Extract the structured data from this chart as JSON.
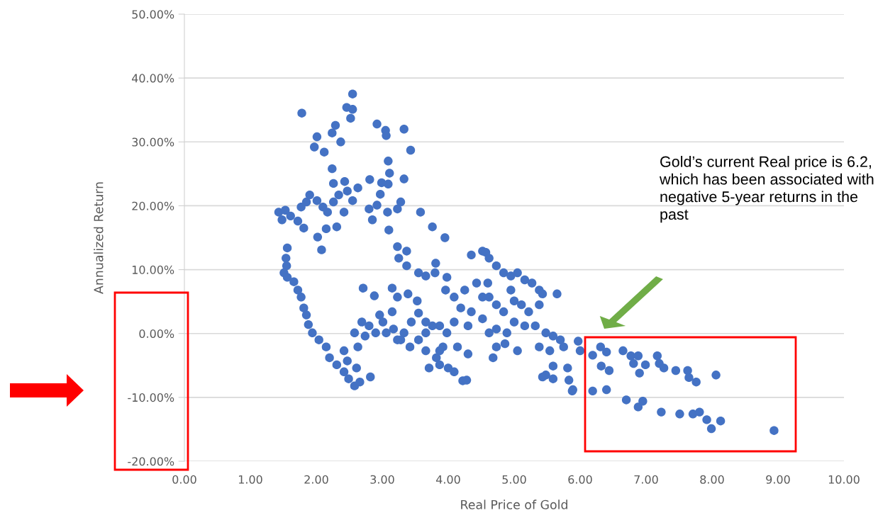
{
  "chart_data": {
    "type": "scatter",
    "xlabel": "Real Price of Gold",
    "ylabel": "Annualized Return",
    "xlim": [
      0,
      10
    ],
    "ylim": [
      -20,
      50
    ],
    "xticks": [
      {
        "value": 0,
        "label": "0.00"
      },
      {
        "value": 1,
        "label": "1.00"
      },
      {
        "value": 2,
        "label": "2.00"
      },
      {
        "value": 3,
        "label": "3.00"
      },
      {
        "value": 4,
        "label": "4.00"
      },
      {
        "value": 5,
        "label": "5.00"
      },
      {
        "value": 6,
        "label": "6.00"
      },
      {
        "value": 7,
        "label": "7.00"
      },
      {
        "value": 8,
        "label": "8.00"
      },
      {
        "value": 9,
        "label": "9.00"
      },
      {
        "value": 10,
        "label": "10.00"
      }
    ],
    "yticks": [
      {
        "value": -20,
        "label": "-20.00%"
      },
      {
        "value": -10,
        "label": "-10.00%"
      },
      {
        "value": 0,
        "label": "0.00%"
      },
      {
        "value": 10,
        "label": "10.00%"
      },
      {
        "value": 20,
        "label": "20.00%"
      },
      {
        "value": 30,
        "label": "30.00%"
      },
      {
        "value": 40,
        "label": "40.00%"
      },
      {
        "value": 50,
        "label": "50.00%"
      }
    ],
    "grid": "y",
    "marker": "circle",
    "annotations": [
      "Gold’s current Real price is 6.2, which has been associated with negative 5-year returns in the past"
    ],
    "series": [
      {
        "color": "#4472c4",
        "x": [
          1.78,
          1.97,
          2.01,
          2.29,
          2.24,
          2.37,
          2.12,
          2.55,
          2.46,
          2.55,
          2.52,
          2.92,
          3.05,
          3.06,
          3.33,
          3.43,
          3.09,
          3.11,
          3.09,
          3.33,
          2.24,
          2.26,
          2.43,
          2.81,
          2.99,
          2.97,
          1.43,
          1.48,
          1.53,
          1.61,
          1.72,
          1.81,
          1.77,
          1.85,
          1.9,
          2.01,
          2.1,
          2.17,
          2.26,
          2.34,
          2.47,
          2.55,
          2.63,
          2.42,
          2.31,
          2.15,
          2.02,
          2.08,
          1.56,
          1.54,
          1.55,
          1.51,
          1.56,
          1.66,
          1.72,
          1.77,
          1.81,
          1.85,
          1.88,
          1.94,
          2.04,
          2.15,
          2.2,
          2.31,
          2.42,
          2.49,
          2.58,
          2.66,
          2.61,
          2.47,
          2.82,
          2.58,
          2.69,
          2.8,
          2.74,
          2.9,
          2.96,
          3.01,
          3.17,
          3.28,
          3.42,
          3.55,
          3.66,
          3.82,
          3.87,
          4.0,
          4.09,
          4.22,
          4.28,
          3.71,
          2.71,
          2.88,
          3.15,
          3.23,
          3.39,
          3.53,
          3.55,
          3.15,
          3.23,
          3.37,
          3.25,
          3.37,
          3.55,
          3.66,
          3.8,
          3.58,
          3.76,
          3.95,
          3.81,
          3.98,
          3.96,
          4.09,
          4.25,
          4.19,
          4.35,
          4.52,
          4.57,
          4.62,
          4.73,
          4.84,
          4.95,
          5.05,
          5.16,
          5.27,
          5.38,
          5.43,
          5.65,
          4.95,
          5.0,
          5.11,
          5.22,
          5.38,
          5.0,
          5.16,
          5.32,
          5.48,
          5.59,
          5.7,
          5.75,
          5.38,
          5.54,
          5.05,
          5.48,
          5.59,
          5.81,
          5.89,
          5.97,
          6.0,
          3.87,
          4.09,
          4.3,
          4.35,
          4.52,
          4.62,
          4.73,
          4.68,
          4.73,
          4.89,
          4.86,
          4.62,
          4.6,
          4.73,
          4.84,
          4.43,
          4.52,
          3.33,
          3.44,
          3.66,
          3.76,
          3.66,
          3.98,
          3.92,
          4.14,
          4.3,
          3.06,
          3.23,
          3.87,
          2.42,
          2.63,
          2.92,
          3.08,
          3.23,
          3.28,
          2.8,
          2.85,
          3.1,
          6.19,
          6.31,
          6.4,
          6.32,
          6.44,
          6.19,
          6.4,
          6.65,
          6.77,
          6.88,
          6.81,
          6.9,
          6.99,
          7.17,
          7.2,
          7.27,
          7.45,
          7.63,
          7.65,
          7.76,
          8.06,
          6.7,
          6.88,
          6.95,
          7.23,
          7.51,
          7.71,
          7.81,
          7.92,
          7.99,
          8.13,
          8.94,
          5.43,
          5.83,
          5.88,
          5.59
        ],
        "values": [
          34.5,
          29.2,
          30.8,
          32.6,
          31.4,
          30.0,
          28.4,
          37.5,
          35.4,
          35.1,
          33.7,
          32.8,
          31.8,
          31.0,
          32.0,
          28.7,
          27.0,
          25.1,
          23.4,
          24.2,
          25.8,
          23.5,
          23.8,
          24.1,
          23.6,
          21.8,
          19.0,
          17.8,
          19.3,
          18.4,
          17.6,
          16.5,
          19.8,
          20.6,
          21.7,
          20.8,
          19.8,
          19.0,
          20.6,
          21.7,
          22.3,
          20.8,
          22.8,
          19.0,
          16.7,
          16.4,
          15.1,
          13.1,
          13.4,
          11.8,
          10.6,
          9.5,
          8.8,
          8.1,
          6.8,
          5.7,
          4.0,
          2.9,
          1.4,
          0.1,
          -1.0,
          -2.1,
          -3.8,
          -4.9,
          -6.0,
          -7.1,
          -8.2,
          -7.6,
          -5.4,
          -4.3,
          -6.8,
          0.1,
          1.8,
          1.2,
          -0.4,
          0.1,
          2.9,
          1.8,
          0.7,
          -1.0,
          -2.1,
          -1.0,
          -2.7,
          -3.8,
          -4.9,
          -5.4,
          -6.0,
          -7.4,
          -7.3,
          -5.4,
          7.1,
          5.9,
          7.1,
          5.7,
          6.2,
          5.1,
          3.2,
          3.4,
          13.6,
          12.9,
          11.8,
          10.6,
          9.5,
          9.0,
          9.5,
          19.0,
          16.7,
          15.0,
          11.0,
          8.8,
          6.8,
          5.7,
          6.8,
          4.0,
          12.3,
          12.9,
          12.7,
          11.8,
          10.6,
          9.5,
          9.0,
          9.5,
          8.4,
          7.9,
          6.8,
          6.2,
          6.2,
          6.8,
          5.1,
          4.5,
          3.4,
          4.5,
          1.8,
          1.2,
          1.2,
          0.1,
          -0.4,
          -1.0,
          -2.1,
          -2.1,
          -2.7,
          -2.7,
          -6.5,
          -7.1,
          -5.4,
          -8.8,
          -1.2,
          -2.7,
          1.2,
          1.8,
          1.2,
          3.4,
          2.3,
          0.1,
          -2.1,
          -3.8,
          0.7,
          0.1,
          -1.6,
          5.7,
          7.9,
          4.5,
          3.4,
          7.9,
          5.7,
          0.1,
          1.8,
          0.1,
          1.2,
          1.8,
          0.1,
          -2.1,
          -2.1,
          -3.2,
          0.1,
          -1.0,
          -2.7,
          -2.7,
          -2.1,
          20.1,
          19.0,
          19.5,
          20.6,
          19.5,
          17.8,
          16.2,
          -3.4,
          -2.1,
          -2.9,
          -5.1,
          -5.8,
          -9.0,
          -8.8,
          -2.7,
          -3.5,
          -3.5,
          -4.7,
          -6.2,
          -4.9,
          -3.5,
          -4.7,
          -5.4,
          -5.8,
          -5.8,
          -6.9,
          -7.6,
          -6.5,
          -10.4,
          -11.5,
          -10.6,
          -12.3,
          -12.6,
          -12.6,
          -12.3,
          -13.5,
          -14.9,
          -13.7,
          -15.2,
          -6.8,
          -7.3,
          -9.0,
          -5.1
        ]
      }
    ]
  }
}
